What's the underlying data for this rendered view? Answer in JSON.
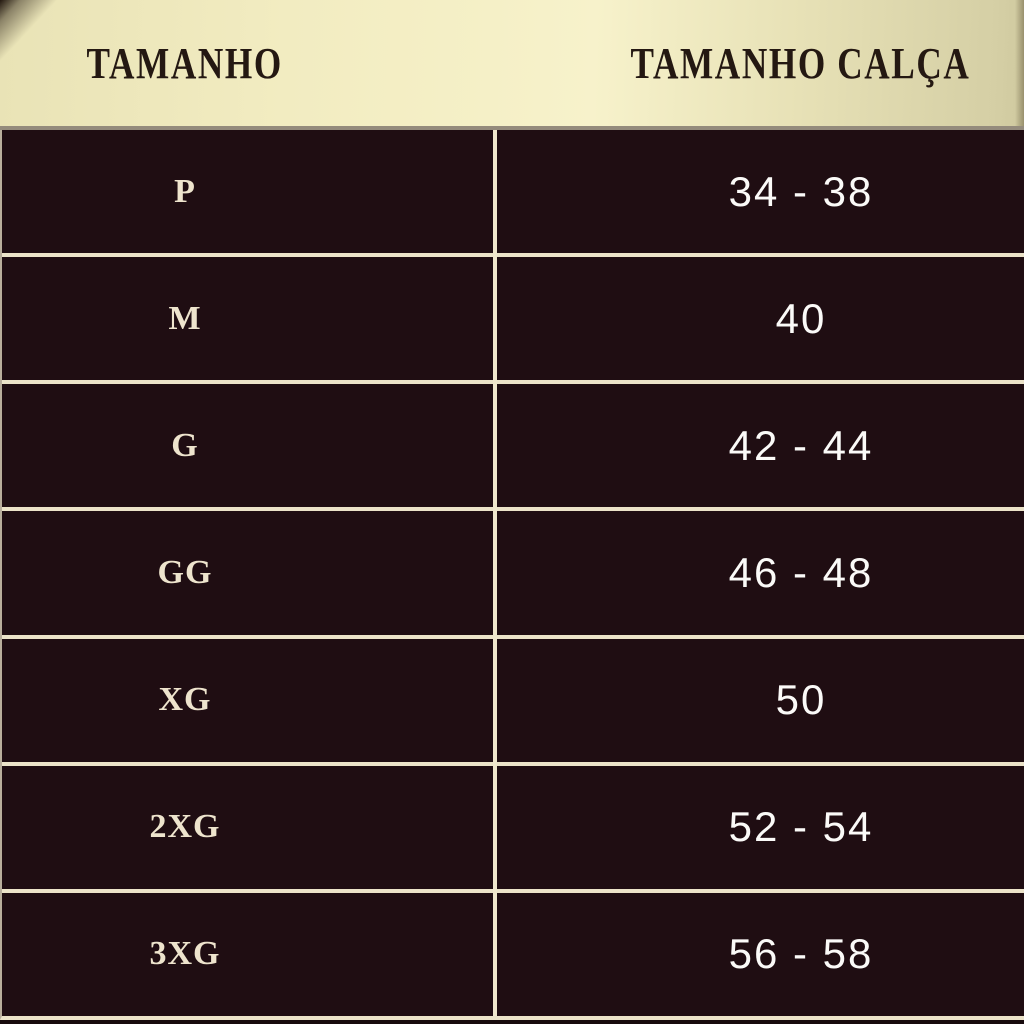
{
  "header": {
    "col1": "TAMANHO",
    "col2": "TAMANHO CALÇA"
  },
  "rows": [
    {
      "size": "P",
      "pants": "34 - 38"
    },
    {
      "size": "M",
      "pants": "40"
    },
    {
      "size": "G",
      "pants": "42 - 44"
    },
    {
      "size": "GG",
      "pants": "46 - 48"
    },
    {
      "size": "XG",
      "pants": "50"
    },
    {
      "size": "2XG",
      "pants": "52 - 54"
    },
    {
      "size": "3XG",
      "pants": "56 - 58"
    }
  ],
  "colors": {
    "header_gradient_left": "#e9e3b6",
    "header_gradient_center": "#f7f2cb",
    "header_gradient_right": "#d5cfa5",
    "header_text": "#241812",
    "body_background": "#1f0d12",
    "divider_line": "#ece3c9",
    "size_text": "#eee4cd",
    "pants_text": "#fbfaf8"
  },
  "chart_data": {
    "type": "table",
    "title": "",
    "columns": [
      "TAMANHO",
      "TAMANHO CALÇA"
    ],
    "rows": [
      [
        "P",
        "34 - 38"
      ],
      [
        "M",
        "40"
      ],
      [
        "G",
        "42 - 44"
      ],
      [
        "GG",
        "46 - 48"
      ],
      [
        "XG",
        "50"
      ],
      [
        "2XG",
        "52 - 54"
      ],
      [
        "3XG",
        "56 - 58"
      ]
    ]
  }
}
